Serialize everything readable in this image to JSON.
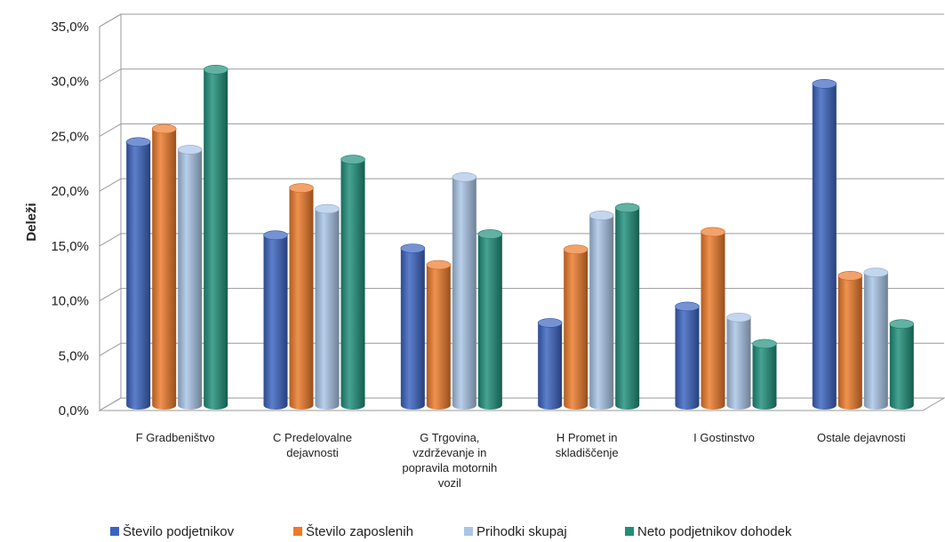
{
  "chart_data": {
    "type": "bar",
    "ylabel": "Deleži",
    "xlabel": "",
    "ylim": [
      0,
      35
    ],
    "yticks": [
      0,
      5,
      10,
      15,
      20,
      25,
      30,
      35
    ],
    "ytick_labels": [
      "0,0%",
      "5,0%",
      "10,0%",
      "15,0%",
      "20,0%",
      "25,0%",
      "30,0%",
      "35,0%"
    ],
    "grid": true,
    "legend_position": "bottom",
    "categories": [
      [
        "F Gradbeništvo"
      ],
      [
        "C Predelovalne",
        "dejavnosti"
      ],
      [
        "G Trgovina,",
        "vzdrževanje in",
        "popravila motornih",
        "vozil"
      ],
      [
        "H Promet in",
        "skladiščenje"
      ],
      [
        "I Gostinstvo"
      ],
      [
        "Ostale dejavnosti"
      ]
    ],
    "series": [
      {
        "name": "Število podjetnikov",
        "color": "#3a63c0",
        "values": [
          24.0,
          15.5,
          14.3,
          7.5,
          9.0,
          29.3
        ]
      },
      {
        "name": "Število zaposlenih",
        "color": "#ec7a2a",
        "values": [
          25.2,
          19.8,
          12.8,
          14.2,
          15.8,
          11.8
        ]
      },
      {
        "name": "Prihodki skupaj",
        "color": "#a9c5e6",
        "values": [
          23.3,
          17.9,
          20.8,
          17.3,
          8.0,
          12.1
        ]
      },
      {
        "name": "Neto podjetnikov dohodek",
        "color": "#1f8f7a",
        "values": [
          30.6,
          22.4,
          15.6,
          18.0,
          5.6,
          7.4
        ]
      }
    ]
  }
}
